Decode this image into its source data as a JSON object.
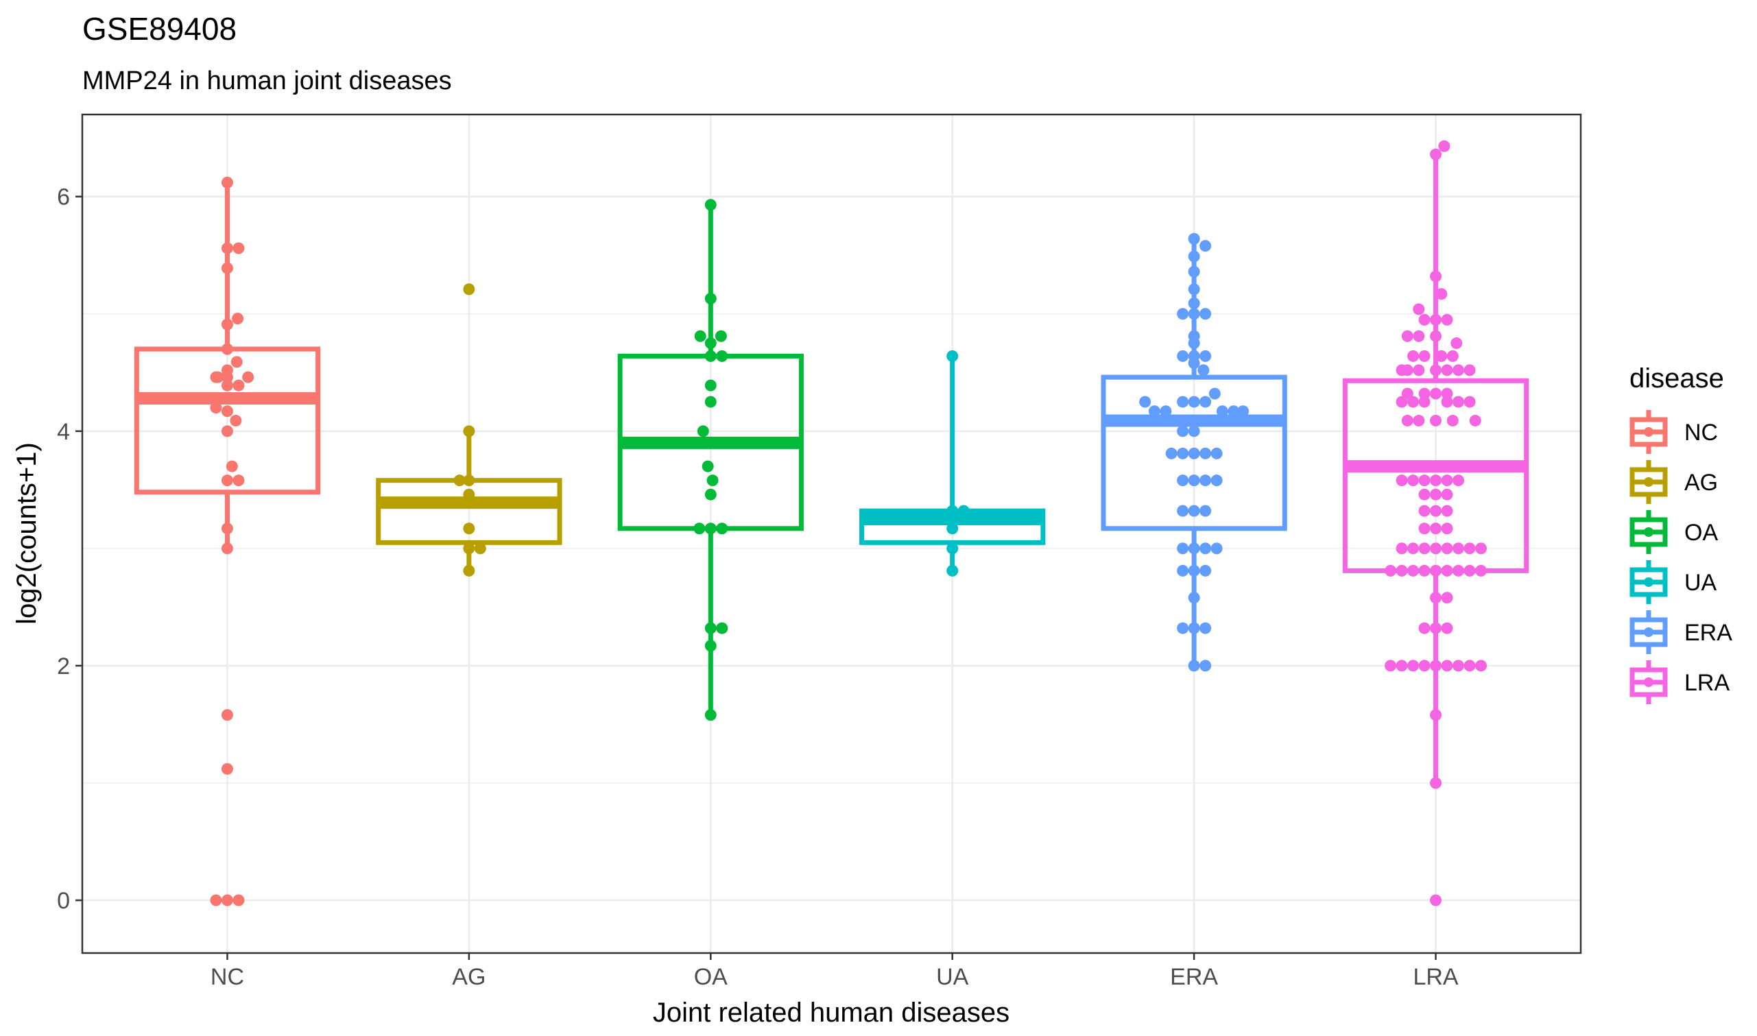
{
  "chart_data": {
    "type": "box+jitter",
    "title": "GSE89408",
    "subtitle": "MMP24 in human joint diseases",
    "xlabel": "Joint related human diseases",
    "ylabel": "log2(counts+1)",
    "ylim": [
      -0.45,
      6.7
    ],
    "yticks": [
      0,
      2,
      4,
      6
    ],
    "grid": true,
    "legend": {
      "title": "disease",
      "position": "right"
    },
    "categories": [
      "NC",
      "AG",
      "OA",
      "UA",
      "ERA",
      "LRA"
    ],
    "colors": {
      "NC": "#F8766D",
      "AG": "#B79F00",
      "OA": "#00BA38",
      "UA": "#00BFC4",
      "ERA": "#619CFF",
      "LRA": "#F564E3"
    },
    "boxes": [
      {
        "group": "NC",
        "min": 3.0,
        "q1": 3.48,
        "median": 4.28,
        "q3": 4.7,
        "max": 6.12
      },
      {
        "group": "AG",
        "min": 2.81,
        "q1": 3.05,
        "median": 3.39,
        "q3": 3.58,
        "max": 4.0
      },
      {
        "group": "OA",
        "min": 1.58,
        "q1": 3.17,
        "median": 3.9,
        "q3": 4.64,
        "max": 5.93
      },
      {
        "group": "UA",
        "min": 2.81,
        "q1": 3.05,
        "median": 3.25,
        "q3": 3.32,
        "max": 4.64
      },
      {
        "group": "ERA",
        "min": 2.0,
        "q1": 3.17,
        "median": 4.09,
        "q3": 4.46,
        "max": 5.64
      },
      {
        "group": "LRA",
        "min": 1.0,
        "q1": 2.81,
        "median": 3.7,
        "q3": 4.43,
        "max": 6.4
      }
    ],
    "points": {
      "NC": [
        [
          0,
          6.12
        ],
        [
          0,
          5.56
        ],
        [
          0.12,
          5.56
        ],
        [
          0,
          5.39
        ],
        [
          0,
          4.91
        ],
        [
          0.11,
          4.96
        ],
        [
          -0.1,
          4.46
        ],
        [
          0,
          4.46
        ],
        [
          0.1,
          4.59
        ],
        [
          0.22,
          4.46
        ],
        [
          0,
          4.52
        ],
        [
          0,
          4.39
        ],
        [
          0.12,
          4.39
        ],
        [
          -0.12,
          4.2
        ],
        [
          0,
          4.17
        ],
        [
          -0.12,
          4.46
        ],
        [
          0,
          4.0
        ],
        [
          0.09,
          4.09
        ],
        [
          0.05,
          3.7
        ],
        [
          0,
          3.58
        ],
        [
          0.12,
          3.58
        ],
        [
          0,
          3.17
        ],
        [
          0,
          3.0
        ],
        [
          0,
          1.58
        ],
        [
          0,
          1.12
        ],
        [
          -0.12,
          0
        ],
        [
          0,
          0
        ],
        [
          0.12,
          0
        ],
        [
          0,
          4.7
        ]
      ],
      "AG": [
        [
          0,
          5.21
        ],
        [
          0,
          4.0
        ],
        [
          0,
          3.58
        ],
        [
          -0.1,
          3.58
        ],
        [
          0,
          3.46
        ],
        [
          0,
          3.39
        ],
        [
          0,
          3.17
        ],
        [
          0,
          3.0
        ],
        [
          0.12,
          3.0
        ],
        [
          0,
          2.81
        ]
      ],
      "OA": [
        [
          0,
          5.93
        ],
        [
          0,
          5.13
        ],
        [
          -0.11,
          4.81
        ],
        [
          0.11,
          4.81
        ],
        [
          0,
          4.75
        ],
        [
          0,
          4.64
        ],
        [
          0.12,
          4.64
        ],
        [
          0,
          4.39
        ],
        [
          0,
          4.25
        ],
        [
          -0.08,
          4.0
        ],
        [
          -0.03,
          3.7
        ],
        [
          0.02,
          3.58
        ],
        [
          0,
          3.46
        ],
        [
          -0.12,
          3.17
        ],
        [
          0,
          3.17
        ],
        [
          0.12,
          3.17
        ],
        [
          0,
          2.32
        ],
        [
          0.12,
          2.32
        ],
        [
          0,
          2.17
        ],
        [
          0,
          1.58
        ]
      ],
      "UA": [
        [
          0,
          4.64
        ],
        [
          0,
          3.32
        ],
        [
          0.12,
          3.32
        ],
        [
          0,
          3.17
        ],
        [
          0,
          3.0
        ],
        [
          0,
          2.81
        ]
      ],
      "ERA": [
        [
          -0.52,
          4.25
        ],
        [
          -0.42,
          4.17
        ],
        [
          -0.3,
          4.17
        ],
        [
          0.3,
          4.17
        ],
        [
          0.42,
          4.17
        ],
        [
          0.52,
          4.17
        ],
        [
          0,
          5.64
        ],
        [
          0.12,
          5.58
        ],
        [
          0,
          5.49
        ],
        [
          0,
          5.36
        ],
        [
          0,
          5.21
        ],
        [
          0,
          5.09
        ],
        [
          -0.12,
          5.0
        ],
        [
          0,
          5.0
        ],
        [
          0.12,
          5.0
        ],
        [
          0,
          4.81
        ],
        [
          0,
          4.75
        ],
        [
          -0.12,
          4.64
        ],
        [
          0,
          4.64
        ],
        [
          0.12,
          4.64
        ],
        [
          0,
          4.58
        ],
        [
          0.1,
          4.52
        ],
        [
          0.22,
          4.32
        ],
        [
          -0.12,
          4.25
        ],
        [
          0,
          4.25
        ],
        [
          0.12,
          4.25
        ],
        [
          -0.22,
          4.09
        ],
        [
          -0.12,
          4.0
        ],
        [
          0,
          4.0
        ],
        [
          -0.12,
          3.81
        ],
        [
          0,
          3.81
        ],
        [
          0.12,
          3.81
        ],
        [
          0.24,
          3.81
        ],
        [
          -0.24,
          3.81
        ],
        [
          -0.12,
          3.58
        ],
        [
          0,
          3.58
        ],
        [
          0.12,
          3.58
        ],
        [
          0.24,
          3.58
        ],
        [
          -0.12,
          3.32
        ],
        [
          0,
          3.32
        ],
        [
          0.12,
          3.32
        ],
        [
          -0.12,
          3.0
        ],
        [
          0,
          3.0
        ],
        [
          0.12,
          3.0
        ],
        [
          0.24,
          3.0
        ],
        [
          -0.12,
          2.81
        ],
        [
          0,
          2.81
        ],
        [
          0.12,
          2.81
        ],
        [
          0,
          2.58
        ],
        [
          0,
          2.32
        ],
        [
          -0.12,
          2.32
        ],
        [
          0.12,
          2.32
        ],
        [
          0,
          2.0
        ],
        [
          0.12,
          2.0
        ]
      ],
      "LRA": [
        [
          0.09,
          6.43
        ],
        [
          0,
          6.36
        ],
        [
          0,
          5.32
        ],
        [
          0.06,
          5.17
        ],
        [
          -0.18,
          5.04
        ],
        [
          -0.12,
          4.95
        ],
        [
          0,
          4.95
        ],
        [
          0.12,
          4.95
        ],
        [
          -0.3,
          4.81
        ],
        [
          -0.18,
          4.81
        ],
        [
          0,
          4.81
        ],
        [
          0.22,
          4.75
        ],
        [
          0.06,
          4.64
        ],
        [
          -0.24,
          4.64
        ],
        [
          -0.12,
          4.64
        ],
        [
          0.18,
          4.64
        ],
        [
          -0.36,
          4.52
        ],
        [
          -0.3,
          4.52
        ],
        [
          -0.18,
          4.52
        ],
        [
          0,
          4.52
        ],
        [
          0.12,
          4.52
        ],
        [
          0.24,
          4.52
        ],
        [
          0.36,
          4.52
        ],
        [
          -0.3,
          4.32
        ],
        [
          -0.12,
          4.32
        ],
        [
          0,
          4.32
        ],
        [
          0.12,
          4.32
        ],
        [
          -0.36,
          4.25
        ],
        [
          -0.24,
          4.25
        ],
        [
          -0.12,
          4.25
        ],
        [
          0.12,
          4.25
        ],
        [
          0.24,
          4.25
        ],
        [
          0.36,
          4.25
        ],
        [
          -0.3,
          4.09
        ],
        [
          -0.18,
          4.09
        ],
        [
          0,
          4.09
        ],
        [
          0.18,
          4.09
        ],
        [
          0.42,
          4.09
        ],
        [
          -0.36,
          3.58
        ],
        [
          -0.24,
          3.58
        ],
        [
          -0.12,
          3.58
        ],
        [
          0,
          3.58
        ],
        [
          0.12,
          3.58
        ],
        [
          0.24,
          3.58
        ],
        [
          -0.12,
          3.46
        ],
        [
          0,
          3.46
        ],
        [
          0.12,
          3.46
        ],
        [
          -0.12,
          3.32
        ],
        [
          0,
          3.32
        ],
        [
          0.12,
          3.32
        ],
        [
          -0.12,
          3.17
        ],
        [
          0,
          3.17
        ],
        [
          0.12,
          3.17
        ],
        [
          -0.36,
          3.0
        ],
        [
          -0.24,
          3.0
        ],
        [
          -0.12,
          3.0
        ],
        [
          0,
          3.0
        ],
        [
          0.12,
          3.0
        ],
        [
          0.24,
          3.0
        ],
        [
          0.36,
          3.0
        ],
        [
          0.48,
          3.0
        ],
        [
          -0.48,
          2.81
        ],
        [
          -0.36,
          2.81
        ],
        [
          -0.24,
          2.81
        ],
        [
          -0.12,
          2.81
        ],
        [
          0,
          2.81
        ],
        [
          0.12,
          2.81
        ],
        [
          0.24,
          2.81
        ],
        [
          0.36,
          2.81
        ],
        [
          0.48,
          2.81
        ],
        [
          0,
          2.58
        ],
        [
          0.12,
          2.58
        ],
        [
          -0.12,
          2.32
        ],
        [
          0,
          2.32
        ],
        [
          0.12,
          2.32
        ],
        [
          -0.48,
          2.0
        ],
        [
          -0.36,
          2.0
        ],
        [
          -0.24,
          2.0
        ],
        [
          -0.12,
          2.0
        ],
        [
          0,
          2.0
        ],
        [
          0.12,
          2.0
        ],
        [
          0.24,
          2.0
        ],
        [
          0.36,
          2.0
        ],
        [
          0.48,
          2.0
        ],
        [
          0,
          1.58
        ],
        [
          0,
          1.0
        ],
        [
          0,
          0
        ],
        [
          -0.36,
          3.7
        ],
        [
          0.42,
          3.7
        ]
      ]
    }
  }
}
